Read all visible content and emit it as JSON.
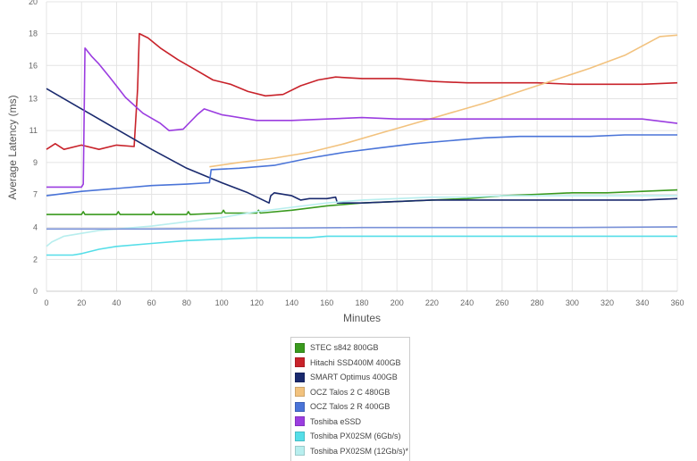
{
  "chart_data": {
    "type": "line",
    "xlabel": "Minutes",
    "ylabel": "Average Latency (ms)",
    "xlim": [
      0,
      360
    ],
    "ylim": [
      0,
      20
    ],
    "x_ticks": [
      0,
      20,
      40,
      60,
      80,
      100,
      120,
      140,
      160,
      180,
      200,
      220,
      240,
      260,
      280,
      300,
      320,
      340,
      360
    ],
    "x_tick_labels": [
      "0",
      "20",
      "40",
      "60",
      "80",
      "100",
      "120",
      "140",
      "160",
      "180",
      "200",
      "220",
      "240",
      "260",
      "280",
      "300",
      "320",
      "340",
      "360"
    ],
    "y_ticks": [
      0,
      2.2,
      4.4,
      6.7,
      8.9,
      11.1,
      13.3,
      15.6,
      17.8,
      20
    ],
    "y_tick_labels": [
      "0",
      "2",
      "4",
      "7",
      "9",
      "11",
      "13",
      "16",
      "18",
      "20"
    ],
    "grid": true,
    "legend_position": "bottom",
    "series": [
      {
        "name": "STEC s842 800GB",
        "color": "#3a9a1e",
        "points": [
          [
            0,
            5.3
          ],
          [
            20,
            5.3
          ],
          [
            21,
            5.5
          ],
          [
            22,
            5.3
          ],
          [
            40,
            5.3
          ],
          [
            41,
            5.5
          ],
          [
            42,
            5.3
          ],
          [
            60,
            5.3
          ],
          [
            61,
            5.5
          ],
          [
            62,
            5.3
          ],
          [
            80,
            5.3
          ],
          [
            81,
            5.5
          ],
          [
            82,
            5.3
          ],
          [
            100,
            5.4
          ],
          [
            101,
            5.6
          ],
          [
            102,
            5.4
          ],
          [
            120,
            5.4
          ],
          [
            121,
            5.6
          ],
          [
            122,
            5.4
          ],
          [
            140,
            5.6
          ],
          [
            160,
            5.9
          ],
          [
            180,
            6.1
          ],
          [
            200,
            6.2
          ],
          [
            220,
            6.3
          ],
          [
            240,
            6.4
          ],
          [
            260,
            6.6
          ],
          [
            280,
            6.7
          ],
          [
            300,
            6.8
          ],
          [
            320,
            6.8
          ],
          [
            340,
            6.9
          ],
          [
            360,
            7.0
          ]
        ]
      },
      {
        "name": "Hitachi SSD400M 400GB",
        "color": "#c8222a",
        "points": [
          [
            0,
            9.8
          ],
          [
            5,
            10.2
          ],
          [
            10,
            9.8
          ],
          [
            20,
            10.1
          ],
          [
            30,
            9.8
          ],
          [
            40,
            10.1
          ],
          [
            50,
            10.0
          ],
          [
            52,
            14.0
          ],
          [
            53,
            17.8
          ],
          [
            58,
            17.5
          ],
          [
            65,
            16.8
          ],
          [
            75,
            16.0
          ],
          [
            85,
            15.3
          ],
          [
            95,
            14.6
          ],
          [
            105,
            14.3
          ],
          [
            115,
            13.8
          ],
          [
            125,
            13.5
          ],
          [
            135,
            13.6
          ],
          [
            145,
            14.2
          ],
          [
            155,
            14.6
          ],
          [
            165,
            14.8
          ],
          [
            180,
            14.7
          ],
          [
            200,
            14.7
          ],
          [
            220,
            14.5
          ],
          [
            240,
            14.4
          ],
          [
            260,
            14.4
          ],
          [
            280,
            14.4
          ],
          [
            300,
            14.3
          ],
          [
            320,
            14.3
          ],
          [
            340,
            14.3
          ],
          [
            360,
            14.4
          ]
        ]
      },
      {
        "name": "SMART Optimus 400GB",
        "color": "#1a2a6e",
        "points": [
          [
            0,
            14.0
          ],
          [
            20,
            12.6
          ],
          [
            40,
            11.2
          ],
          [
            60,
            9.8
          ],
          [
            80,
            8.5
          ],
          [
            100,
            7.5
          ],
          [
            115,
            6.8
          ],
          [
            127,
            6.1
          ],
          [
            128,
            6.6
          ],
          [
            130,
            6.8
          ],
          [
            140,
            6.6
          ],
          [
            145,
            6.3
          ],
          [
            150,
            6.4
          ],
          [
            160,
            6.4
          ],
          [
            165,
            6.5
          ],
          [
            166,
            6.1
          ],
          [
            180,
            6.1
          ],
          [
            200,
            6.2
          ],
          [
            220,
            6.3
          ],
          [
            240,
            6.3
          ],
          [
            260,
            6.3
          ],
          [
            280,
            6.3
          ],
          [
            300,
            6.3
          ],
          [
            320,
            6.3
          ],
          [
            340,
            6.3
          ],
          [
            360,
            6.4
          ]
        ]
      },
      {
        "name": "OCZ Talos 2 C 480GB",
        "color": "#f2c27e",
        "points": [
          [
            93,
            8.6
          ],
          [
            110,
            8.9
          ],
          [
            130,
            9.2
          ],
          [
            150,
            9.6
          ],
          [
            170,
            10.2
          ],
          [
            190,
            10.9
          ],
          [
            210,
            11.6
          ],
          [
            230,
            12.3
          ],
          [
            250,
            13.0
          ],
          [
            270,
            13.8
          ],
          [
            290,
            14.6
          ],
          [
            310,
            15.4
          ],
          [
            330,
            16.3
          ],
          [
            350,
            17.6
          ],
          [
            360,
            17.7
          ]
        ]
      },
      {
        "name": "OCZ Talos 2 R 400GB",
        "color": "#4a74d8",
        "points": [
          [
            0,
            6.6
          ],
          [
            20,
            6.9
          ],
          [
            40,
            7.1
          ],
          [
            60,
            7.3
          ],
          [
            80,
            7.4
          ],
          [
            93,
            7.5
          ],
          [
            94,
            8.4
          ],
          [
            110,
            8.5
          ],
          [
            130,
            8.7
          ],
          [
            150,
            9.2
          ],
          [
            170,
            9.6
          ],
          [
            190,
            9.9
          ],
          [
            210,
            10.2
          ],
          [
            230,
            10.4
          ],
          [
            250,
            10.6
          ],
          [
            270,
            10.7
          ],
          [
            290,
            10.7
          ],
          [
            310,
            10.7
          ],
          [
            330,
            10.8
          ],
          [
            350,
            10.8
          ],
          [
            360,
            10.8
          ]
        ]
      },
      {
        "name": "Toshiba eSSD",
        "color": "#9b3de0",
        "points": [
          [
            0,
            7.2
          ],
          [
            20,
            7.2
          ],
          [
            21,
            7.4
          ],
          [
            22,
            16.8
          ],
          [
            26,
            16.2
          ],
          [
            30,
            15.7
          ],
          [
            36,
            14.8
          ],
          [
            45,
            13.4
          ],
          [
            55,
            12.3
          ],
          [
            65,
            11.6
          ],
          [
            70,
            11.1
          ],
          [
            78,
            11.2
          ],
          [
            82,
            11.7
          ],
          [
            86,
            12.2
          ],
          [
            90,
            12.6
          ],
          [
            100,
            12.2
          ],
          [
            120,
            11.8
          ],
          [
            140,
            11.8
          ],
          [
            160,
            11.9
          ],
          [
            180,
            12.0
          ],
          [
            200,
            11.9
          ],
          [
            220,
            11.9
          ],
          [
            240,
            11.9
          ],
          [
            260,
            11.9
          ],
          [
            280,
            11.9
          ],
          [
            300,
            11.9
          ],
          [
            320,
            11.9
          ],
          [
            340,
            11.9
          ],
          [
            360,
            11.6
          ]
        ]
      },
      {
        "name": "Toshiba PX02SM (6Gb/s)",
        "color": "#55dee8",
        "points": [
          [
            0,
            2.5
          ],
          [
            15,
            2.5
          ],
          [
            20,
            2.6
          ],
          [
            30,
            2.9
          ],
          [
            40,
            3.1
          ],
          [
            60,
            3.3
          ],
          [
            80,
            3.5
          ],
          [
            100,
            3.6
          ],
          [
            120,
            3.7
          ],
          [
            150,
            3.7
          ],
          [
            160,
            3.8
          ],
          [
            200,
            3.8
          ],
          [
            250,
            3.8
          ],
          [
            300,
            3.8
          ],
          [
            360,
            3.8
          ]
        ]
      },
      {
        "name": "Toshiba PX02SM (12Gb/s)*",
        "color": "#b8eeee",
        "points": [
          [
            0,
            3.1
          ],
          [
            3,
            3.4
          ],
          [
            10,
            3.8
          ],
          [
            20,
            4.0
          ],
          [
            30,
            4.2
          ],
          [
            40,
            4.3
          ],
          [
            60,
            4.5
          ],
          [
            80,
            4.8
          ],
          [
            100,
            5.1
          ],
          [
            120,
            5.5
          ],
          [
            140,
            5.8
          ],
          [
            160,
            6.1
          ],
          [
            180,
            6.3
          ],
          [
            200,
            6.4
          ],
          [
            220,
            6.5
          ],
          [
            240,
            6.5
          ],
          [
            260,
            6.6
          ],
          [
            280,
            6.6
          ],
          [
            300,
            6.6
          ],
          [
            320,
            6.6
          ],
          [
            340,
            6.6
          ],
          [
            360,
            6.6
          ]
        ]
      },
      {
        "name": "",
        "color": "#7a92d8",
        "points": [
          [
            0,
            4.3
          ],
          [
            60,
            4.3
          ],
          [
            120,
            4.35
          ],
          [
            180,
            4.4
          ],
          [
            240,
            4.4
          ],
          [
            300,
            4.4
          ],
          [
            360,
            4.45
          ]
        ]
      }
    ]
  }
}
